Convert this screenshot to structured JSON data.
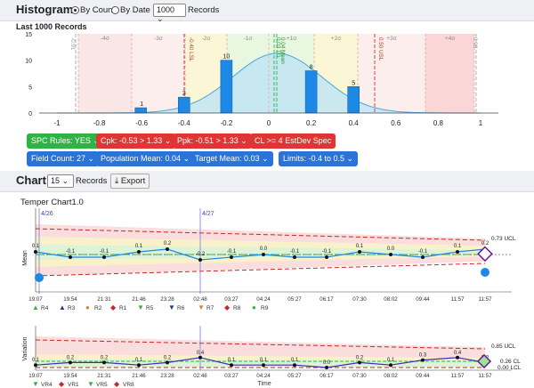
{
  "histogram": {
    "title": "Histogram",
    "by_count": "By Count",
    "by_date": "By Date",
    "records_select": "1000",
    "records_label": "Records",
    "subtitle": "Last 1000 Records",
    "y_ticks": [
      "15",
      "10",
      "5",
      "0"
    ],
    "x_ticks": [
      "-1",
      "-0.8",
      "-0.6",
      "-0.4",
      "-0.2",
      "0",
      "0.2",
      "0.4",
      "0.6",
      "0.8",
      "1"
    ],
    "sigma_labels": [
      "-4σ",
      "-3σ",
      "-2σ",
      "-1σ",
      "+1σ",
      "+2σ",
      "+3σ",
      "+4σ"
    ],
    "line_labels": [
      "-0.91",
      "-0.40 LSL",
      "0.04 Mean",
      "0.03 TG",
      "0.50 USL",
      "0.98"
    ],
    "bar_labels": [
      "1",
      "3",
      "10",
      "8",
      "5"
    ]
  },
  "chart_data": {
    "type": "bar",
    "categories": [
      "-0.6",
      "-0.4",
      "-0.2",
      "0",
      "0.2",
      "0.4"
    ],
    "values": [
      1,
      3,
      10,
      0,
      8,
      5
    ],
    "ylim": [
      0,
      15
    ]
  },
  "buttons_row1": [
    "SPC Rules: YES",
    "Cpk: -0.53 > 1.33",
    "Ppk: -0.51 > 1.33",
    "CL >= 4 EstDev Spec"
  ],
  "buttons_row2": [
    "Field Count: 27",
    "Population Mean: 0.04",
    "Target Mean: 0.03",
    "Limits: -0.4 to 0.5"
  ],
  "chart": {
    "title": "Chart",
    "records_select": "15",
    "records_label": "Records",
    "export_label": "Export",
    "subtitle": "Temper Chart1.0",
    "dates": [
      "4/26",
      "4/27"
    ],
    "mean_axis": "Mean",
    "variation_axis": "Variation",
    "time_axis": "Time",
    "ucl1": "0.73 UCL",
    "ucl2": "0.85 UCL",
    "cl2": "0.26 CL",
    "lcl2": "0.00 LCL",
    "times": [
      "19:07",
      "19:54",
      "21:31",
      "21:46",
      "23:28",
      "02:48",
      "03:27",
      "04:24",
      "05:27",
      "06:17",
      "07:30",
      "08:02",
      "09:44",
      "11:57",
      "11:57"
    ],
    "mean_vals": [
      "0.1",
      "-0.1",
      "-0.1",
      "0.1",
      "0.2",
      "-0.2",
      "-0.1",
      "0.0",
      "-0.1",
      "-0.1",
      "0.1",
      "0.0",
      "-0.1",
      "0.1",
      "0.2"
    ],
    "var_vals": [
      "0.1",
      "0.2",
      "0.2",
      "0.1",
      "0.2",
      "0.4",
      "0.1",
      "0.1",
      "0.1",
      "0.0",
      "0.2",
      "0.1",
      "0.3",
      "0.4",
      "0.2"
    ],
    "legend1": [
      "R4",
      "R3",
      "R2",
      "R1",
      "R5",
      "R6",
      "R7",
      "R8",
      "R9"
    ],
    "legend2": [
      "VR4",
      "VR1",
      "VR5",
      "VR8"
    ]
  }
}
